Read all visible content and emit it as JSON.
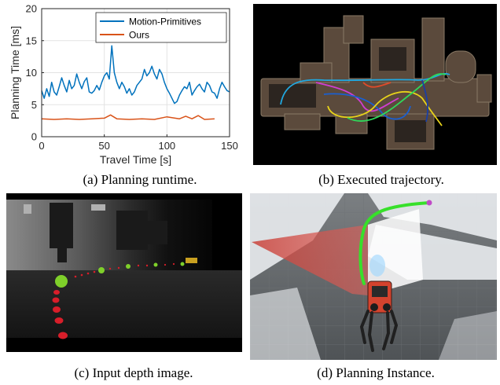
{
  "figure": {
    "captions": {
      "a": "(a) Planning runtime.",
      "b": "(b) Executed trajectory.",
      "c": "(c) Input depth image.",
      "d": "(d) Planning Instance."
    }
  },
  "chart_data": {
    "type": "line",
    "title": "",
    "xlabel": "Travel Time [s]",
    "ylabel": "Planning Time [ms]",
    "xlim": [
      0,
      150
    ],
    "ylim": [
      0,
      20
    ],
    "xticks": [
      "0",
      "50",
      "100",
      "150"
    ],
    "yticks": [
      "0",
      "5",
      "10",
      "15",
      "20"
    ],
    "grid": true,
    "legend_position": "top-right",
    "colors": {
      "motion_primitives": "#0072BD",
      "ours": "#D95319"
    },
    "series": [
      {
        "name": "Motion-Primitives",
        "x": [
          0,
          2,
          4,
          6,
          8,
          10,
          12,
          14,
          16,
          18,
          20,
          22,
          24,
          26,
          28,
          30,
          32,
          34,
          36,
          38,
          40,
          42,
          44,
          46,
          48,
          50,
          52,
          54,
          56,
          58,
          60,
          62,
          64,
          66,
          68,
          70,
          72,
          74,
          76,
          78,
          80,
          82,
          84,
          86,
          88,
          90,
          92,
          94,
          96,
          98,
          100,
          102,
          104,
          106,
          108,
          110,
          112,
          114,
          116,
          118,
          120,
          122,
          124,
          126,
          128,
          130,
          132,
          134,
          136,
          138,
          140,
          142,
          144,
          146,
          148,
          150
        ],
        "values": [
          7.2,
          6.0,
          7.5,
          6.3,
          8.5,
          7.0,
          6.5,
          7.8,
          9.2,
          8.0,
          7.0,
          8.8,
          7.5,
          8.0,
          9.8,
          8.5,
          7.5,
          8.6,
          9.2,
          7.0,
          6.8,
          7.2,
          8.0,
          7.3,
          8.5,
          9.5,
          10.0,
          9.0,
          14.2,
          10.0,
          8.5,
          7.5,
          8.5,
          7.8,
          6.8,
          7.5,
          6.5,
          7.0,
          8.0,
          8.5,
          9.0,
          10.5,
          9.5,
          10.0,
          11.0,
          9.8,
          9.0,
          10.5,
          9.8,
          8.5,
          7.5,
          6.8,
          6.0,
          5.2,
          5.5,
          6.5,
          7.2,
          7.8,
          7.5,
          8.5,
          6.5,
          7.2,
          7.8,
          8.2,
          7.5,
          7.0,
          8.5,
          8.0,
          7.0,
          6.8,
          6.0,
          7.5,
          8.5,
          7.8,
          7.2,
          7.0
        ]
      },
      {
        "name": "Ours",
        "x": [
          0,
          10,
          20,
          30,
          40,
          50,
          55,
          60,
          70,
          80,
          90,
          100,
          110,
          115,
          120,
          125,
          130,
          138
        ],
        "values": [
          2.8,
          2.7,
          2.8,
          2.7,
          2.8,
          2.9,
          3.4,
          2.8,
          2.7,
          2.8,
          2.7,
          3.1,
          2.8,
          3.2,
          2.8,
          3.3,
          2.7,
          2.8
        ]
      }
    ]
  }
}
